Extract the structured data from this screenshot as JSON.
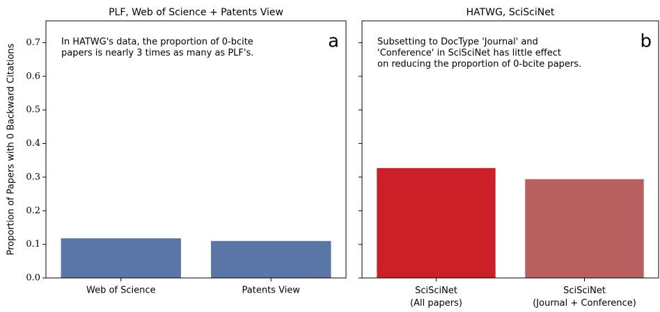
{
  "chart_data": [
    {
      "type": "bar",
      "title": "PLF, Web of Science + Patents View",
      "ylabel": "Proportion of Papers with 0 Backward Citations",
      "panel_label": "a",
      "annotation": "In HATWG's data, the proportion of 0-bcite\npapers is nearly 3 times as many as PLF's.",
      "categories": [
        "Web of Science",
        "Patents View"
      ],
      "values": [
        0.118,
        0.11
      ],
      "colors": [
        "#5a76a6",
        "#5a76a6"
      ],
      "ylim": [
        0,
        0.765
      ],
      "yticks": [
        {
          "value": 0,
          "label": "0.0"
        },
        0.1,
        0.2,
        0.3,
        0.4,
        0.5,
        0.6,
        0.7
      ]
    },
    {
      "type": "bar",
      "title": "HATWG, SciSciNet",
      "panel_label": "b",
      "annotation": "Subsetting to DocType 'Journal' and\n'Conference' in SciSciNet has little effect\non reducing the proportion of 0-bcite papers.",
      "categories": [
        "SciSciNet\n(All papers)",
        "SciSciNet\n(Journal + Conference)"
      ],
      "values": [
        0.327,
        0.294
      ],
      "colors": [
        "#cc1f27",
        "#b86060"
      ],
      "ylim": [
        0,
        0.765
      ],
      "yticks": [
        0,
        0.1,
        0.2,
        0.3,
        0.4,
        0.5,
        0.6,
        0.7
      ]
    }
  ]
}
